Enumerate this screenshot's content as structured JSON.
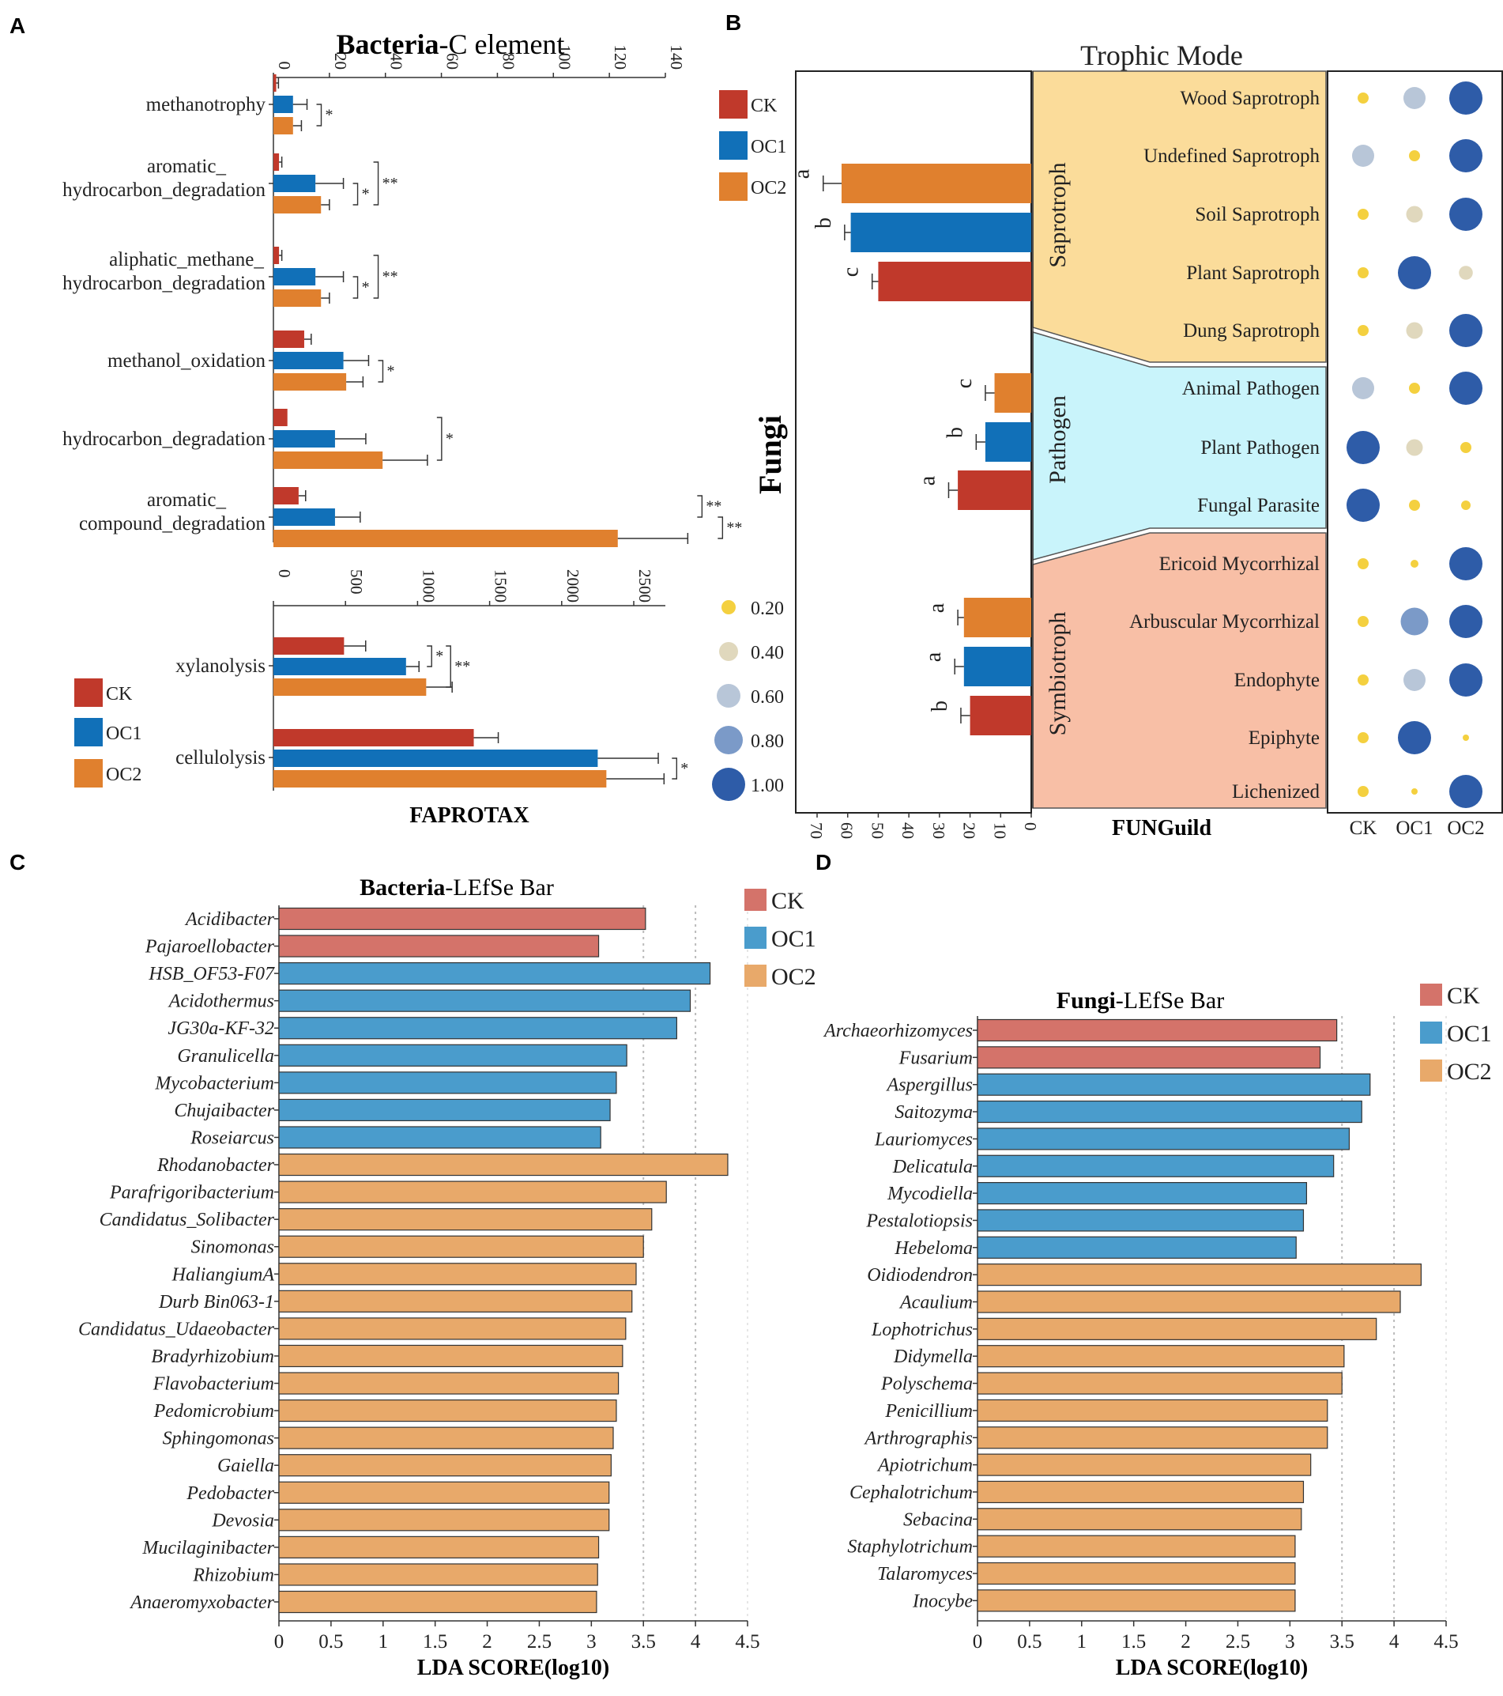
{
  "colors": {
    "ck": "#c0392b",
    "oc1": "#1170b8",
    "oc2": "#e0802e",
    "ck_light": "#d4736a",
    "oc1_light": "#4a9ccc",
    "oc2_light": "#e8a96a",
    "saprotroph_bg": "#fbdc9a",
    "pathogen_bg": "#c9f4fb",
    "symbiotroph_bg": "#f8bfa6",
    "dot_020": "#f4d03f",
    "dot_040": "#e0d8bd",
    "dot_060": "#b8c6d8",
    "dot_080": "#7b9ac8",
    "dot_100": "#2e5ca8"
  },
  "panels": {
    "a": "A",
    "b": "B",
    "c": "C",
    "d": "D"
  },
  "groups": [
    "CK",
    "OC1",
    "OC2"
  ],
  "chart_data": [
    {
      "id": "A-top",
      "type": "bar",
      "orientation": "horizontal",
      "title_bold": "Bacteria",
      "title_rest": "-C element",
      "xlim": [
        0,
        140
      ],
      "ticks": [
        0,
        20,
        40,
        60,
        80,
        100,
        120,
        140
      ],
      "categories": [
        {
          "lines": [
            "methanotrophy"
          ],
          "values": [
            1,
            7,
            7
          ],
          "errors": [
            0.8,
            5,
            3
          ],
          "sig": [
            {
              "text": "*",
              "pair": "OC1-OC2"
            }
          ]
        },
        {
          "lines": [
            "aromatic_",
            "hydrocarbon_degradation"
          ],
          "values": [
            2,
            15,
            17
          ],
          "errors": [
            1,
            10,
            3
          ],
          "sig": [
            {
              "text": "*",
              "pair": "OC1-OC2"
            },
            {
              "text": "**",
              "pair": "CK-OC2"
            }
          ]
        },
        {
          "lines": [
            "aliphatic_methane_",
            "hydrocarbon_degradation"
          ],
          "values": [
            2,
            15,
            17
          ],
          "errors": [
            1,
            10,
            3
          ],
          "sig": [
            {
              "text": "*",
              "pair": "OC1-OC2"
            },
            {
              "text": "**",
              "pair": "CK-OC2"
            }
          ]
        },
        {
          "lines": [
            "methanol_oxidation"
          ],
          "values": [
            11,
            25,
            26
          ],
          "errors": [
            2.5,
            9,
            6
          ],
          "sig": [
            {
              "text": "*",
              "pair": "OC1-OC2"
            }
          ]
        },
        {
          "lines": [
            "hydrocarbon_degradation"
          ],
          "values": [
            5,
            22,
            39
          ],
          "errors": [
            0,
            11,
            16
          ],
          "sig": [
            {
              "text": "*",
              "pair": "CK-OC2"
            }
          ]
        },
        {
          "lines": [
            "aromatic_",
            "compound_degradation"
          ],
          "values": [
            9,
            22,
            123
          ],
          "errors": [
            2.5,
            9,
            25
          ],
          "sig": [
            {
              "text": "**",
              "pair": "CK-OC1"
            },
            {
              "text": "**",
              "pair": "OC1-OC2"
            }
          ]
        }
      ]
    },
    {
      "id": "A-bottom",
      "type": "bar",
      "orientation": "horizontal",
      "xlabel": "FAPROTAX",
      "xlim": [
        0,
        2500
      ],
      "ticks": [
        0,
        500,
        1000,
        1500,
        2000,
        2500
      ],
      "categories": [
        {
          "lines": [
            "xylanolysis"
          ],
          "values": [
            490,
            920,
            1060
          ],
          "errors": [
            150,
            90,
            180
          ],
          "sig": [
            {
              "text": "*",
              "pair": "CK-OC1"
            },
            {
              "text": "**",
              "pair": "CK-OC2"
            }
          ]
        },
        {
          "lines": [
            "cellulolysis"
          ],
          "values": [
            1390,
            2250,
            2310
          ],
          "errors": [
            170,
            420,
            400
          ],
          "sig": [
            {
              "text": "*",
              "pair": "OC1-OC2"
            }
          ]
        }
      ]
    },
    {
      "id": "B",
      "type": "bar",
      "orientation": "horizontal-reversed",
      "ylabel": "Fungi",
      "xlim": [
        0,
        70
      ],
      "ticks": [
        0,
        10,
        20,
        30,
        40,
        50,
        60,
        70
      ],
      "trophic_title": "Trophic Mode",
      "guild_label": "FUNGuild",
      "modes": [
        {
          "name": "Saprotroph",
          "values": [
            50,
            59,
            62
          ],
          "errors": [
            2,
            2,
            6
          ],
          "letters": [
            "c",
            "b",
            "a"
          ],
          "guilds": [
            "Wood Saprotroph",
            "Undefined Saprotroph",
            "Soil Saprotroph",
            "Plant Saprotroph",
            "Dung Saprotroph"
          ]
        },
        {
          "name": "Pathogen",
          "values": [
            24,
            15,
            12
          ],
          "errors": [
            3,
            3,
            3
          ],
          "letters": [
            "a",
            "b",
            "c"
          ],
          "guilds": [
            "Animal Pathogen",
            "Plant Pathogen",
            "Fungal Parasite"
          ]
        },
        {
          "name": "Symbiotroph",
          "values": [
            20,
            22,
            22
          ],
          "errors": [
            3,
            3,
            2
          ],
          "letters": [
            "b",
            "a",
            "a"
          ],
          "guilds": [
            "Ericoid Mycorrhizal",
            "Arbuscular Mycorrhizal",
            "Endophyte",
            "Epiphyte",
            "Lichenized"
          ]
        }
      ],
      "dot_legend": [
        "0.20",
        "0.40",
        "0.60",
        "0.80",
        "1.00"
      ],
      "dot_values": [
        [
          0.2,
          0.6,
          1.0
        ],
        [
          0.6,
          0.2,
          1.0
        ],
        [
          0.2,
          0.4,
          1.0
        ],
        [
          0.2,
          1.0,
          0.3
        ],
        [
          0.2,
          0.4,
          1.0
        ],
        [
          0.6,
          0.2,
          1.0
        ],
        [
          1.0,
          0.4,
          0.2
        ],
        [
          1.0,
          0.2,
          0.15
        ],
        [
          0.2,
          0.1,
          1.0
        ],
        [
          0.2,
          0.8,
          1.0
        ],
        [
          0.2,
          0.6,
          1.0
        ],
        [
          0.2,
          1.0,
          0.05
        ],
        [
          0.2,
          0.05,
          1.0
        ]
      ]
    },
    {
      "id": "C",
      "type": "bar",
      "orientation": "horizontal",
      "title_bold": "Bacteria",
      "title_rest": "-LEfSe Bar",
      "xlabel": "LDA SCORE(log10)",
      "xlim": [
        0,
        4.5
      ],
      "ticks": [
        "0",
        "0.5",
        "1",
        "1.5",
        "2",
        "2.5",
        "3",
        "3.5",
        "4",
        "4.5"
      ],
      "taxa": [
        {
          "name": "Acidibacter",
          "value": 3.52,
          "group": "CK"
        },
        {
          "name": "Pajaroellobacter",
          "value": 3.07,
          "group": "CK"
        },
        {
          "name": "HSB_OF53-F07",
          "value": 4.14,
          "group": "OC1"
        },
        {
          "name": "Acidothermus",
          "value": 3.95,
          "group": "OC1"
        },
        {
          "name": "JG30a-KF-32",
          "value": 3.82,
          "group": "OC1"
        },
        {
          "name": "Granulicella",
          "value": 3.34,
          "group": "OC1"
        },
        {
          "name": "Mycobacterium",
          "value": 3.24,
          "group": "OC1"
        },
        {
          "name": "Chujaibacter",
          "value": 3.18,
          "group": "OC1"
        },
        {
          "name": "Roseiarcus",
          "value": 3.09,
          "group": "OC1"
        },
        {
          "name": "Rhodanobacter",
          "value": 4.31,
          "group": "OC2"
        },
        {
          "name": "Parafrigoribacterium",
          "value": 3.72,
          "group": "OC2"
        },
        {
          "name": "Candidatus_Solibacter",
          "value": 3.58,
          "group": "OC2"
        },
        {
          "name": "Sinomonas",
          "value": 3.5,
          "group": "OC2"
        },
        {
          "name": "HaliangiumA",
          "value": 3.43,
          "group": "OC2"
        },
        {
          "name": "Durb Bin063-1",
          "value": 3.39,
          "group": "OC2"
        },
        {
          "name": "Candidatus_Udaeobacter",
          "value": 3.33,
          "group": "OC2"
        },
        {
          "name": "Bradyrhizobium",
          "value": 3.3,
          "group": "OC2"
        },
        {
          "name": "Flavobacterium",
          "value": 3.26,
          "group": "OC2"
        },
        {
          "name": "Pedomicrobium",
          "value": 3.24,
          "group": "OC2"
        },
        {
          "name": "Sphingomonas",
          "value": 3.21,
          "group": "OC2"
        },
        {
          "name": "Gaiella",
          "value": 3.19,
          "group": "OC2"
        },
        {
          "name": "Pedobacter",
          "value": 3.17,
          "group": "OC2"
        },
        {
          "name": "Devosia",
          "value": 3.17,
          "group": "OC2"
        },
        {
          "name": "Mucilaginibacter",
          "value": 3.07,
          "group": "OC2"
        },
        {
          "name": "Rhizobium",
          "value": 3.06,
          "group": "OC2"
        },
        {
          "name": "Anaeromyxobacter",
          "value": 3.05,
          "group": "OC2"
        }
      ]
    },
    {
      "id": "D",
      "type": "bar",
      "orientation": "horizontal",
      "title_bold": "Fungi",
      "title_rest": "-LEfSe Bar",
      "xlabel": "LDA SCORE(log10)",
      "xlim": [
        0,
        4.5
      ],
      "ticks": [
        "0",
        "0.5",
        "1",
        "1.5",
        "2",
        "2.5",
        "3",
        "3.5",
        "4",
        "4.5"
      ],
      "taxa": [
        {
          "name": "Archaeorhizomyces",
          "value": 3.45,
          "group": "CK"
        },
        {
          "name": "Fusarium",
          "value": 3.29,
          "group": "CK"
        },
        {
          "name": "Aspergillus",
          "value": 3.77,
          "group": "OC1"
        },
        {
          "name": "Saitozyma",
          "value": 3.69,
          "group": "OC1"
        },
        {
          "name": "Lauriomyces",
          "value": 3.57,
          "group": "OC1"
        },
        {
          "name": "Delicatula",
          "value": 3.42,
          "group": "OC1"
        },
        {
          "name": "Mycodiella",
          "value": 3.16,
          "group": "OC1"
        },
        {
          "name": "Pestalotiopsis",
          "value": 3.13,
          "group": "OC1"
        },
        {
          "name": "Hebeloma",
          "value": 3.06,
          "group": "OC1"
        },
        {
          "name": "Oidiodendron",
          "value": 4.26,
          "group": "OC2"
        },
        {
          "name": "Acaulium",
          "value": 4.06,
          "group": "OC2"
        },
        {
          "name": "Lophotrichus",
          "value": 3.83,
          "group": "OC2"
        },
        {
          "name": "Didymella",
          "value": 3.52,
          "group": "OC2"
        },
        {
          "name": "Polyschema",
          "value": 3.5,
          "group": "OC2"
        },
        {
          "name": "Penicillium",
          "value": 3.36,
          "group": "OC2"
        },
        {
          "name": "Arthrographis",
          "value": 3.36,
          "group": "OC2"
        },
        {
          "name": "Apiotrichum",
          "value": 3.2,
          "group": "OC2"
        },
        {
          "name": "Cephalotrichum",
          "value": 3.13,
          "group": "OC2"
        },
        {
          "name": "Sebacina",
          "value": 3.11,
          "group": "OC2"
        },
        {
          "name": "Staphylotrichum",
          "value": 3.05,
          "group": "OC2"
        },
        {
          "name": "Talaromyces",
          "value": 3.05,
          "group": "OC2"
        },
        {
          "name": "Inocybe",
          "value": 3.05,
          "group": "OC2"
        }
      ]
    }
  ]
}
